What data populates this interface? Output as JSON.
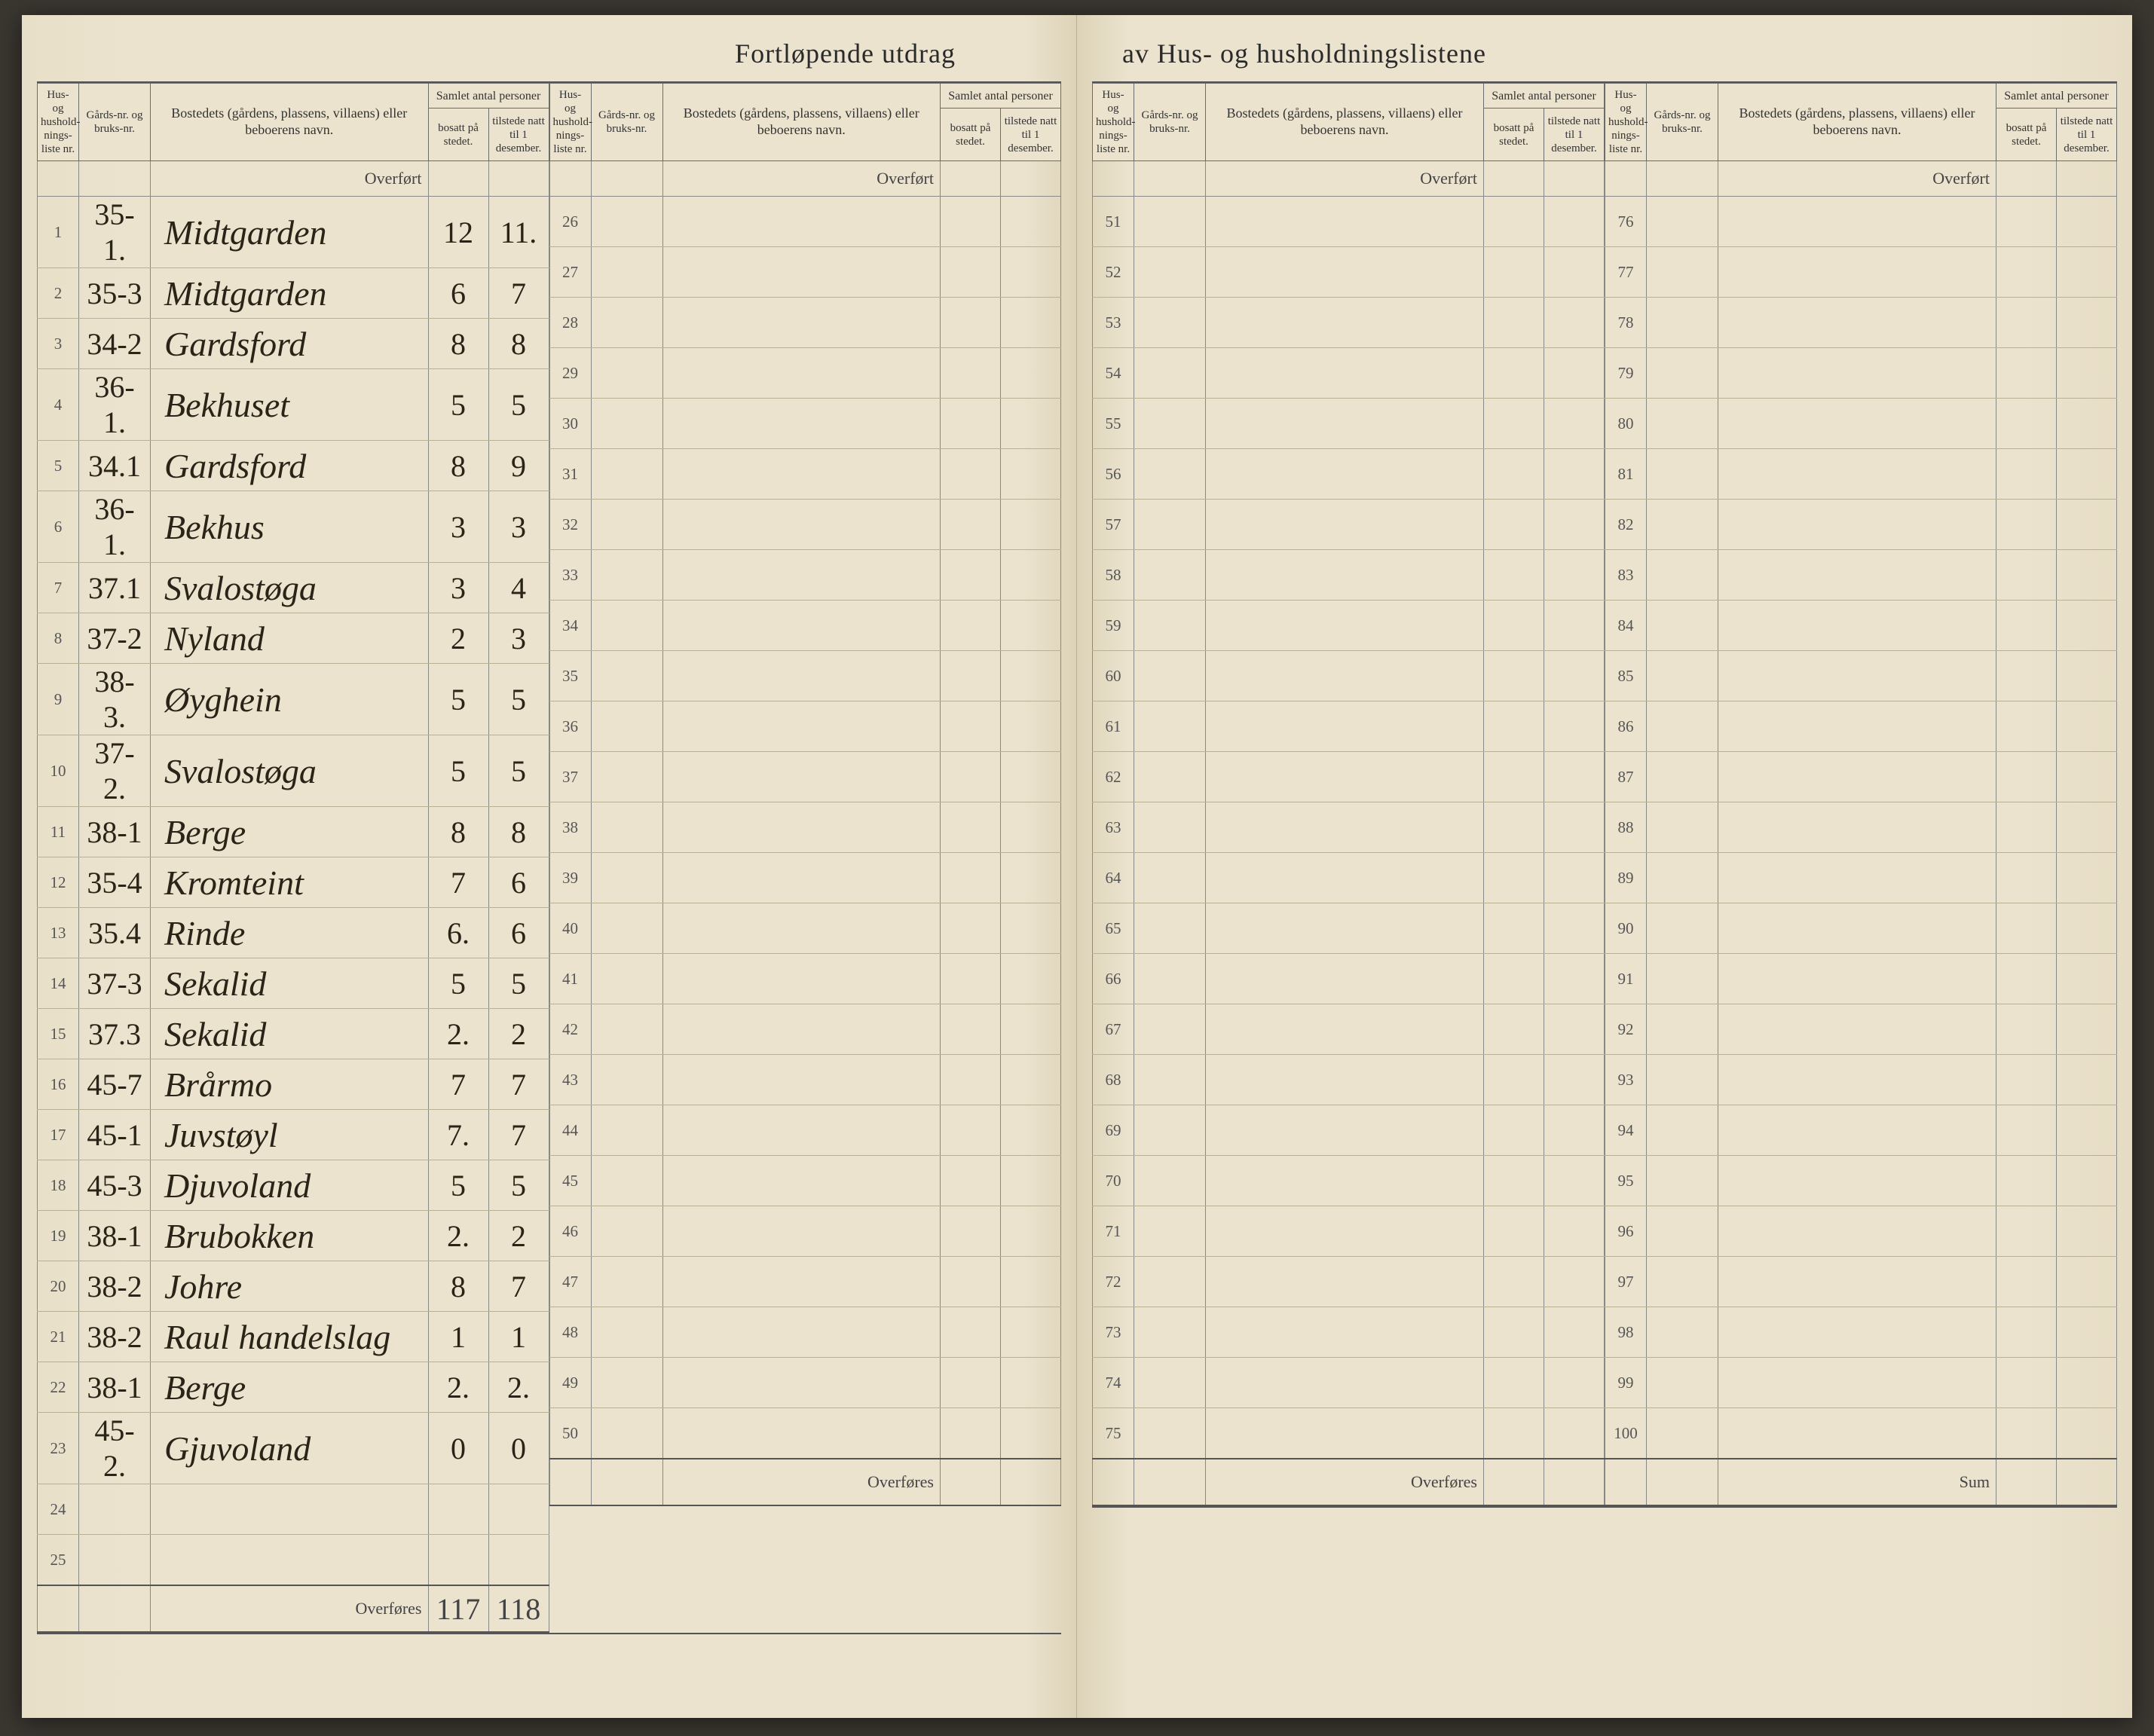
{
  "title_left": "Fortløpende utdrag",
  "title_right": "av Hus- og husholdningslistene",
  "headers": {
    "liste_nr": "Hus- og hushold-nings-liste nr.",
    "gards_nr": "Gårds-nr. og bruks-nr.",
    "bosted": "Bostedets (gårdens, plassens, villaens) eller beboerens navn.",
    "samlet": "Samlet antal personer",
    "bosatt": "bosatt på stedet.",
    "tilstede": "tilstede natt til 1 desember."
  },
  "overfort": "Overført",
  "overfores": "Overføres",
  "sum": "Sum",
  "rows": [
    {
      "n": "1",
      "g": "35-1.",
      "name": "Midtgarden",
      "b": "12",
      "t": "11."
    },
    {
      "n": "2",
      "g": "35-3",
      "name": "Midtgarden",
      "b": "6",
      "t": "7"
    },
    {
      "n": "3",
      "g": "34-2",
      "name": "Gardsford",
      "b": "8",
      "t": "8"
    },
    {
      "n": "4",
      "g": "36-1.",
      "name": "Bekhuset",
      "b": "5",
      "t": "5"
    },
    {
      "n": "5",
      "g": "34.1",
      "name": "Gardsford",
      "b": "8",
      "t": "9"
    },
    {
      "n": "6",
      "g": "36-1.",
      "name": "Bekhus",
      "b": "3",
      "t": "3"
    },
    {
      "n": "7",
      "g": "37.1",
      "name": "Svalostøga",
      "b": "3",
      "t": "4"
    },
    {
      "n": "8",
      "g": "37-2",
      "name": "Nyland",
      "b": "2",
      "t": "3"
    },
    {
      "n": "9",
      "g": "38-3.",
      "name": "Øyghein",
      "b": "5",
      "t": "5"
    },
    {
      "n": "10",
      "g": "37-2.",
      "name": "Svalostøga",
      "b": "5",
      "t": "5"
    },
    {
      "n": "11",
      "g": "38-1",
      "name": "Berge",
      "b": "8",
      "t": "8"
    },
    {
      "n": "12",
      "g": "35-4",
      "name": "Kromteint",
      "b": "7",
      "t": "6"
    },
    {
      "n": "13",
      "g": "35.4",
      "name": "Rinde",
      "b": "6.",
      "t": "6"
    },
    {
      "n": "14",
      "g": "37-3",
      "name": "Sekalid",
      "b": "5",
      "t": "5"
    },
    {
      "n": "15",
      "g": "37.3",
      "name": "Sekalid",
      "b": "2.",
      "t": "2"
    },
    {
      "n": "16",
      "g": "45-7",
      "name": "Brårmo",
      "b": "7",
      "t": "7"
    },
    {
      "n": "17",
      "g": "45-1",
      "name": "Juvstøyl",
      "b": "7.",
      "t": "7"
    },
    {
      "n": "18",
      "g": "45-3",
      "name": "Djuvoland",
      "b": "5",
      "t": "5"
    },
    {
      "n": "19",
      "g": "38-1",
      "name": "Brubokken",
      "b": "2.",
      "t": "2"
    },
    {
      "n": "20",
      "g": "38-2",
      "name": "Johre",
      "b": "8",
      "t": "7"
    },
    {
      "n": "21",
      "g": "38-2",
      "name": "Raul handelslag",
      "b": "1",
      "t": "1"
    },
    {
      "n": "22",
      "g": "38-1",
      "name": "Berge",
      "b": "2.",
      "t": "2."
    },
    {
      "n": "23",
      "g": "45-2.",
      "name": "Gjuvoland",
      "b": "0",
      "t": "0"
    },
    {
      "n": "24",
      "g": "",
      "name": "",
      "b": "",
      "t": ""
    },
    {
      "n": "25",
      "g": "",
      "name": "",
      "b": "",
      "t": ""
    }
  ],
  "totals": {
    "b": "117",
    "t": "118"
  },
  "empty_ranges": [
    [
      26,
      50
    ],
    [
      51,
      75
    ],
    [
      76,
      100
    ]
  ]
}
